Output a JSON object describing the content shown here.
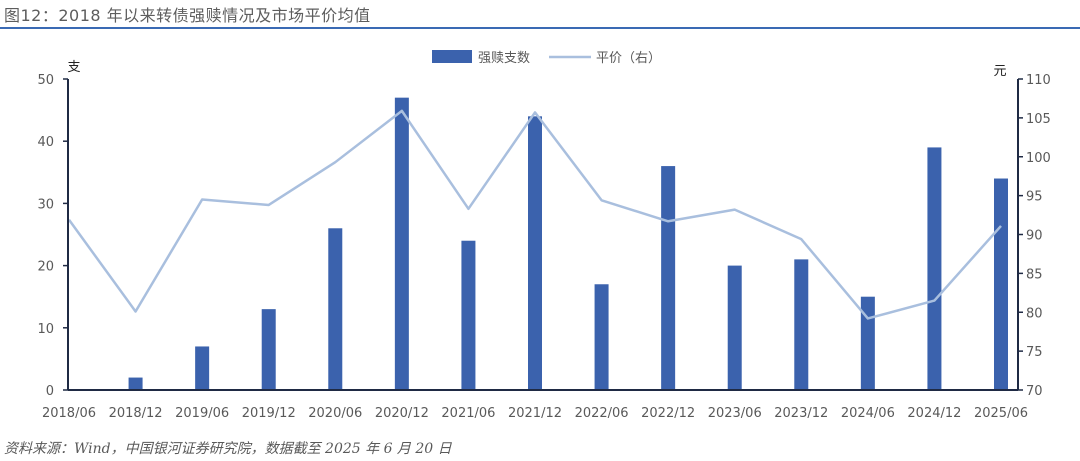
{
  "header": {
    "title": "图12：2018 年以来转债强赎情况及市场平价均值"
  },
  "footer": {
    "source": "资料来源：Wind，中国银河证券研究院，数据截至 2025 年 6 月 20 日"
  },
  "colors": {
    "bar": "#3b62ad",
    "line": "#a9bfde",
    "axis": "#1f2a44",
    "text": "#595959",
    "rule": "#3a6ab4"
  },
  "chart_data": {
    "type": "bar+line",
    "categories": [
      "2018/06",
      "2018/12",
      "2019/06",
      "2019/12",
      "2020/06",
      "2020/12",
      "2021/06",
      "2021/12",
      "2022/06",
      "2022/12",
      "2023/06",
      "2023/12",
      "2024/06",
      "2024/12",
      "2025/06"
    ],
    "left_axis": {
      "unit_label": "支",
      "min": 0,
      "max": 50,
      "ticks": [
        0,
        10,
        20,
        30,
        40,
        50
      ]
    },
    "right_axis": {
      "unit_label": "元",
      "min": 70,
      "max": 110,
      "ticks": [
        70,
        75,
        80,
        85,
        90,
        95,
        100,
        105,
        110
      ]
    },
    "series": [
      {
        "name": "强赎支数",
        "type": "bar",
        "axis": "left",
        "values": [
          null,
          2,
          7,
          13,
          26,
          47,
          24,
          44,
          17,
          36,
          20,
          21,
          15,
          39,
          34
        ]
      },
      {
        "name": "平价（右）",
        "type": "line",
        "axis": "right",
        "values": [
          91.9,
          80.1,
          94.5,
          93.8,
          99.3,
          105.9,
          93.3,
          105.7,
          94.4,
          91.7,
          93.2,
          89.4,
          79.2,
          81.5,
          91.1
        ]
      }
    ],
    "legend": "top-center",
    "grid": false
  }
}
